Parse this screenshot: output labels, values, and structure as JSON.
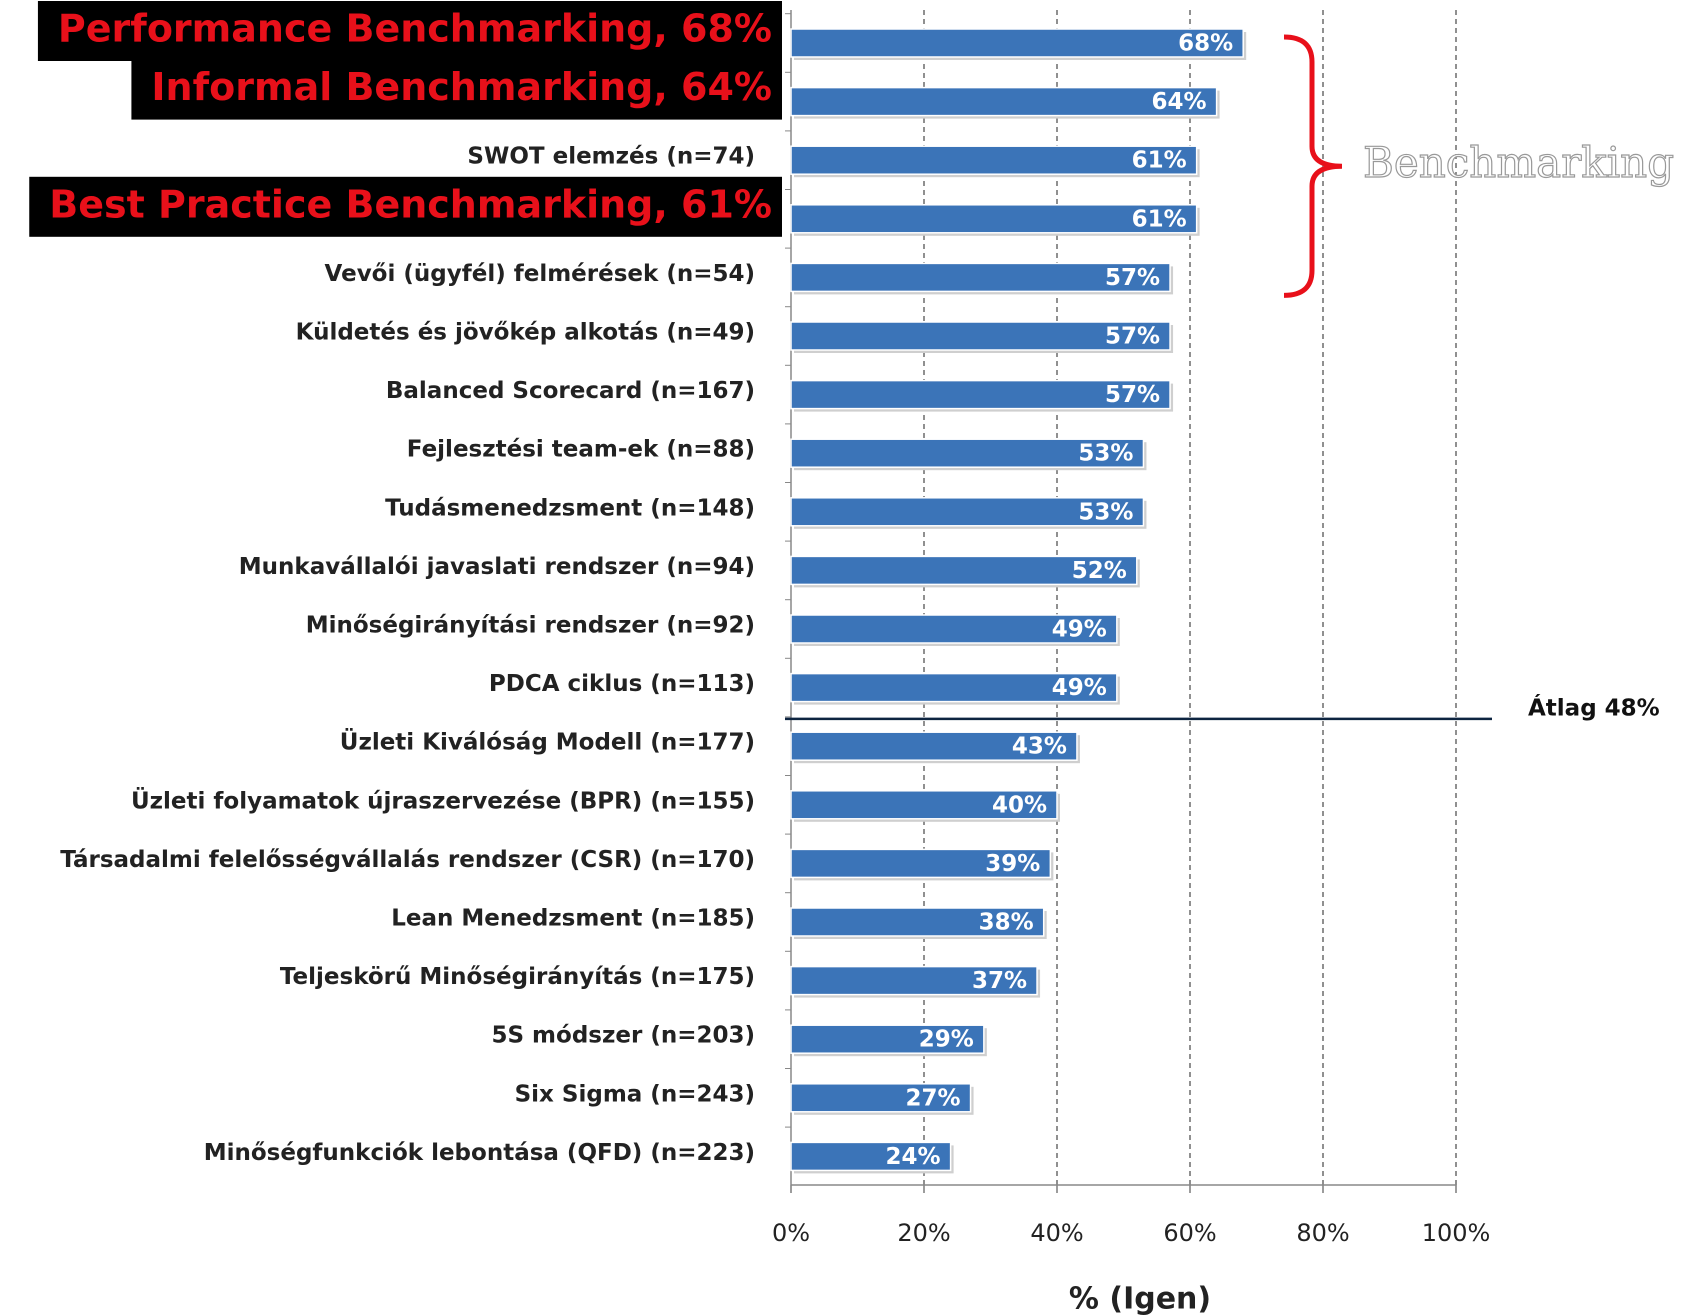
{
  "chart_data": {
    "type": "barh",
    "categories": [
      "Performance Benchmarking, 68%",
      "Informal Benchmarking, 64%",
      "SWOT elemzés (n=74)",
      "Best Practice Benchmarking, 61%",
      "Vevői (ügyfél) felmérések (n=54)",
      "Küldetés és jövőkép alkotás (n=49)",
      "Balanced Scorecard (n=167)",
      "Fejlesztési team-ek (n=88)",
      "Tudásmenedzsment (n=148)",
      "Munkavállalói javaslati rendszer (n=94)",
      "Minőségirányítási rendszer (n=92)",
      "PDCA ciklus (n=113)",
      "Üzleti Kiválóság Modell (n=177)",
      "Üzleti folyamatok újraszervezése (BPR) (n=155)",
      "Társadalmi felelősségvállalás rendszer (CSR) (n=170)",
      "Lean Menedzsment (n=185)",
      "Teljeskörű Minőségirányítás (n=175)",
      "5S módszer (n=203)",
      "Six Sigma (n=243)",
      "Minőségfunkciók lebontása (QFD) (n=223)"
    ],
    "values": [
      68,
      64,
      61,
      61,
      57,
      57,
      57,
      53,
      53,
      52,
      49,
      49,
      43,
      40,
      39,
      38,
      37,
      29,
      27,
      24
    ],
    "value_labels": [
      "68%",
      "64%",
      "61%",
      "61%",
      "57%",
      "57%",
      "57%",
      "53%",
      "53%",
      "52%",
      "49%",
      "49%",
      "43%",
      "40%",
      "39%",
      "38%",
      "37%",
      "29%",
      "27%",
      "24%"
    ],
    "color": "#3b74b8",
    "highlighted": [
      0,
      1,
      3
    ],
    "xlim": [
      0,
      100
    ],
    "xticks": [
      {
        "value": 0,
        "label": "0%"
      },
      {
        "value": 20,
        "label": "20%"
      },
      {
        "value": 40,
        "label": "40%"
      },
      {
        "value": 60,
        "label": "60%"
      },
      {
        "value": 80,
        "label": "80%"
      },
      {
        "value": 100,
        "label": "100%"
      }
    ],
    "grid": true,
    "xlabel": "% (Igen)",
    "average": {
      "value": 48,
      "label": "Átlag 48%"
    },
    "bracket_label": "Benchmarking"
  }
}
